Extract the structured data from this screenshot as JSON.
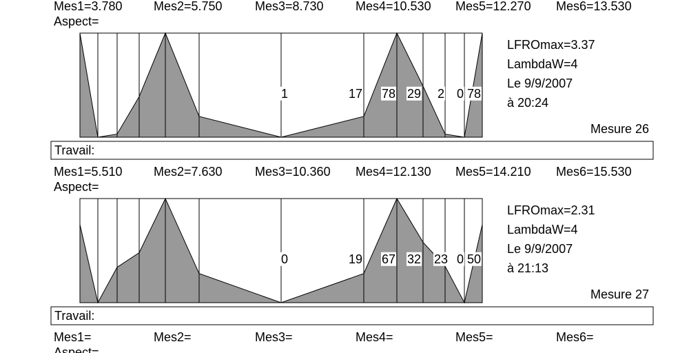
{
  "panels": [
    {
      "measures": [
        "Mes1=3.780",
        "Mes2=5.750",
        "Mes3=8.730",
        "Mes4=10.530",
        "Mes5=12.270",
        "Mes6=13.530"
      ],
      "aspect": "Aspect=",
      "profile": [
        100,
        0,
        3,
        39,
        100,
        20,
        0,
        20,
        100,
        49,
        3,
        0,
        100
      ],
      "labels": [
        1,
        17,
        78,
        29,
        2,
        0,
        78
      ],
      "info": [
        "LFROmax=3.37",
        "LambdaW=4",
        "Le 9/9/2007",
        "à  20:24"
      ],
      "mesure": "Mesure  26",
      "travail": "Travail:"
    },
    {
      "measures": [
        "Mes1=5.510",
        "Mes2=7.630",
        "Mes3=10.360",
        "Mes4=12.130",
        "Mes5=14.210",
        "Mes6=15.530"
      ],
      "aspect": "Aspect=",
      "profile": [
        75,
        0,
        34,
        48,
        100,
        28,
        0,
        28,
        100,
        58,
        35,
        0,
        75
      ],
      "labels": [
        0,
        19,
        67,
        32,
        23,
        0,
        50
      ],
      "info": [
        "LFROmax=2.31",
        "LambdaW=4",
        "Le 9/9/2007",
        "à  21:13"
      ],
      "mesure": "Mesure  27",
      "travail": "Travail:"
    },
    {
      "measures": [
        "Mes1=",
        "Mes2=",
        "Mes3=",
        "Mes4=",
        "Mes5=",
        "Mes6="
      ],
      "aspect": "Aspect="
    }
  ]
}
